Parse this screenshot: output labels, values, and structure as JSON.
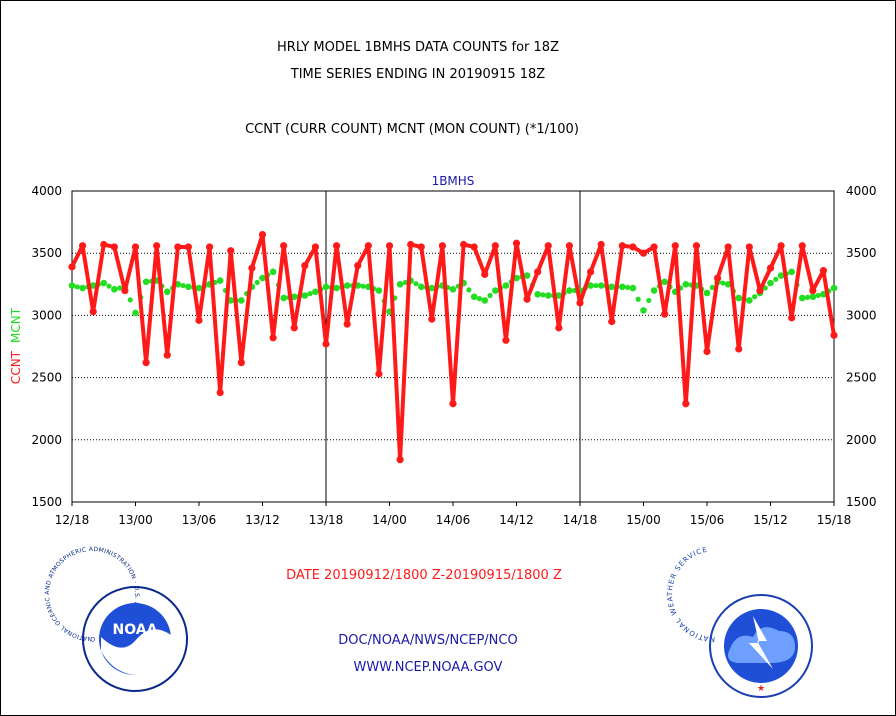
{
  "header": {
    "title_line1": "HRLY MODEL 1BMHS DATA COUNTS for 18Z",
    "title_line2": "TIME SERIES ENDING IN 20190915 18Z",
    "subtitle": "CCNT (CURR COUNT) MCNT (MON COUNT) (*1/100)"
  },
  "footer": {
    "date_range": "DATE 20190912/1800 Z-20190915/1800 Z",
    "org": "DOC/NOAA/NWS/NCEP/NCO",
    "url": "WWW.NCEP.NOAA.GOV"
  },
  "logos": {
    "noaa_text": "NOAA",
    "noaa_ring": "NATIONAL OCEANIC AND ATMOSPHERIC ADMINISTRATION · U.S. DEPARTMENT OF COMMERCE",
    "nws_ring": "NATIONAL WEATHER SERVICE"
  },
  "colors": {
    "ccnt": "#ff1a1a",
    "mcnt": "#22dd22",
    "panel_label": "#1a1aa8",
    "date_label": "#ff1a1a"
  },
  "chart_data": {
    "type": "line",
    "panel_label": "1BMHS",
    "ylabel_left": [
      "CCNT",
      "MCNT"
    ],
    "ylim": [
      1500,
      4000
    ],
    "yticks": [
      1500,
      2000,
      2500,
      3000,
      3500,
      4000
    ],
    "grid": "horizontal dotted",
    "x_hours_range": [
      0,
      72
    ],
    "x_ticks": [
      {
        "h": 0,
        "label": "12/18"
      },
      {
        "h": 6,
        "label": "13/00"
      },
      {
        "h": 12,
        "label": "13/06"
      },
      {
        "h": 18,
        "label": "13/12"
      },
      {
        "h": 24,
        "label": "13/18"
      },
      {
        "h": 30,
        "label": "14/00"
      },
      {
        "h": 36,
        "label": "14/06"
      },
      {
        "h": 42,
        "label": "14/12"
      },
      {
        "h": 48,
        "label": "14/18"
      },
      {
        "h": 54,
        "label": "15/00"
      },
      {
        "h": 60,
        "label": "15/06"
      },
      {
        "h": 66,
        "label": "15/12"
      },
      {
        "h": 72,
        "label": "15/18"
      }
    ],
    "day_dividers_h": [
      24,
      48
    ],
    "series": [
      {
        "name": "CCNT",
        "values": [
          3390,
          3560,
          3030,
          3570,
          3550,
          3200,
          3550,
          2620,
          3560,
          2680,
          3550,
          3550,
          2960,
          3550,
          2380,
          3520,
          2620,
          3380,
          3650,
          2820,
          3560,
          2900,
          3400,
          3550,
          2770,
          3560,
          2930,
          3400,
          3560,
          2530,
          3560,
          1840,
          3570,
          3550,
          2970,
          3560,
          2290,
          3570,
          3550,
          3330,
          3560,
          2800,
          3580,
          3130,
          3350,
          3560,
          2900,
          3560,
          3100,
          3350,
          3570,
          2950,
          3560,
          3550,
          3500,
          3550,
          3010,
          3560,
          2290,
          3560,
          2710,
          3300,
          3550,
          2730,
          3550,
          3200,
          3380,
          3560,
          2980,
          3560,
          3200,
          3360,
          2840
        ]
      },
      {
        "name": "MCNT",
        "values": [
          3240,
          3220,
          3240,
          3260,
          3210,
          3230,
          3020,
          3270,
          3280,
          3190,
          3250,
          3230,
          3220,
          3250,
          3280,
          3120,
          3120,
          3230,
          3300,
          3350,
          3140,
          3150,
          3160,
          3190,
          3230,
          3220,
          3240,
          3240,
          3230,
          3200,
          3030,
          3250,
          3280,
          3230,
          3220,
          3240,
          3210,
          3260,
          3150,
          3120,
          3200,
          3240,
          3300,
          3320,
          3170,
          3160,
          3160,
          3200,
          3200,
          3240,
          3240,
          3230,
          3230,
          3220,
          3040,
          3200,
          3270,
          3190,
          3250,
          3240,
          3180,
          3270,
          3250,
          3140,
          3120,
          3180,
          3260,
          3320,
          3350,
          3140,
          3150,
          3170,
          3220
        ]
      }
    ]
  }
}
